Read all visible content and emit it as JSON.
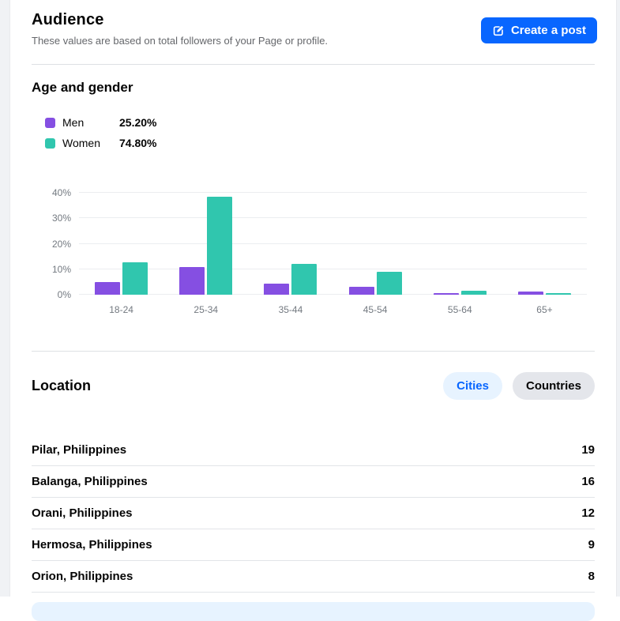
{
  "page": {
    "title": "Audience",
    "subtitle": "These values are based on total followers of your Page or profile.",
    "create_post_label": "Create a post"
  },
  "colors": {
    "men": "#854fe2",
    "women": "#30c6ae",
    "primary_blue": "#0866ff",
    "pill_active_bg": "#e7f3ff",
    "pill_inactive_bg": "#e4e6eb",
    "page_background": "#f0f2f5"
  },
  "age_gender": {
    "title": "Age and gender",
    "legend": [
      {
        "label": "Men",
        "value": "25.20%",
        "color": "#854fe2"
      },
      {
        "label": "Women",
        "value": "74.80%",
        "color": "#30c6ae"
      }
    ],
    "chart_data": {
      "type": "bar",
      "categories": [
        "18-24",
        "25-34",
        "35-44",
        "45-54",
        "55-64",
        "65+"
      ],
      "series": [
        {
          "name": "Men",
          "color": "#854fe2",
          "values": [
            5.0,
            11.0,
            4.3,
            3.1,
            0.5,
            1.3
          ]
        },
        {
          "name": "Women",
          "color": "#30c6ae",
          "values": [
            12.8,
            38.6,
            12.2,
            9.0,
            1.5,
            0.7
          ]
        }
      ],
      "title": "Age and gender",
      "xlabel": "",
      "ylabel": "",
      "ylim": [
        0,
        40
      ],
      "yticks": [
        0,
        10,
        20,
        30,
        40
      ],
      "ytick_labels": [
        "0%",
        "10%",
        "20%",
        "30%",
        "40%"
      ],
      "grid": true,
      "legend_position": "top-left"
    }
  },
  "location": {
    "title": "Location",
    "tabs": [
      {
        "label": "Cities",
        "active": true
      },
      {
        "label": "Countries",
        "active": false
      }
    ],
    "rows": [
      {
        "name": "Pilar, Philippines",
        "value": "19"
      },
      {
        "name": "Balanga, Philippines",
        "value": "16"
      },
      {
        "name": "Orani, Philippines",
        "value": "12"
      },
      {
        "name": "Hermosa, Philippines",
        "value": "9"
      },
      {
        "name": "Orion, Philippines",
        "value": "8"
      }
    ]
  }
}
